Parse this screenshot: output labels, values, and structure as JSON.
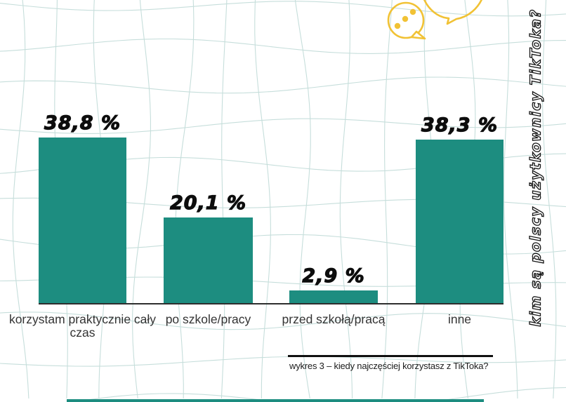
{
  "chart_data": {
    "type": "bar",
    "title": "",
    "categories": [
      "korzystam praktycznie cały czas",
      "po szkole/pracy",
      "przed szkołą/pracą",
      "inne"
    ],
    "values": [
      38.8,
      20.1,
      2.9,
      38.3
    ],
    "value_labels": [
      "38,8 %",
      "20,1 %",
      "2,9 %",
      "38,3 %"
    ],
    "ylim": [
      0,
      40
    ],
    "legend": "none",
    "grid": "decorative wavy warped grid, light teal, full background",
    "bar_color": "#1d8d80"
  },
  "caption": "wykres 3 – kiedy najczęściej korzystasz z TikToka?",
  "side_title": "kim są polscy użytkownicy TikToka?",
  "colors": {
    "bar_teal": "#1d8d80",
    "accent_yellow": "#f1c235",
    "grid_line": "#c6dedb",
    "text_black": "#0d0d0d",
    "label_gray": "#333333"
  },
  "icons": {
    "bubble_dots": "speech-bubble-dots-icon",
    "bubble_plain": "speech-bubble-icon"
  }
}
